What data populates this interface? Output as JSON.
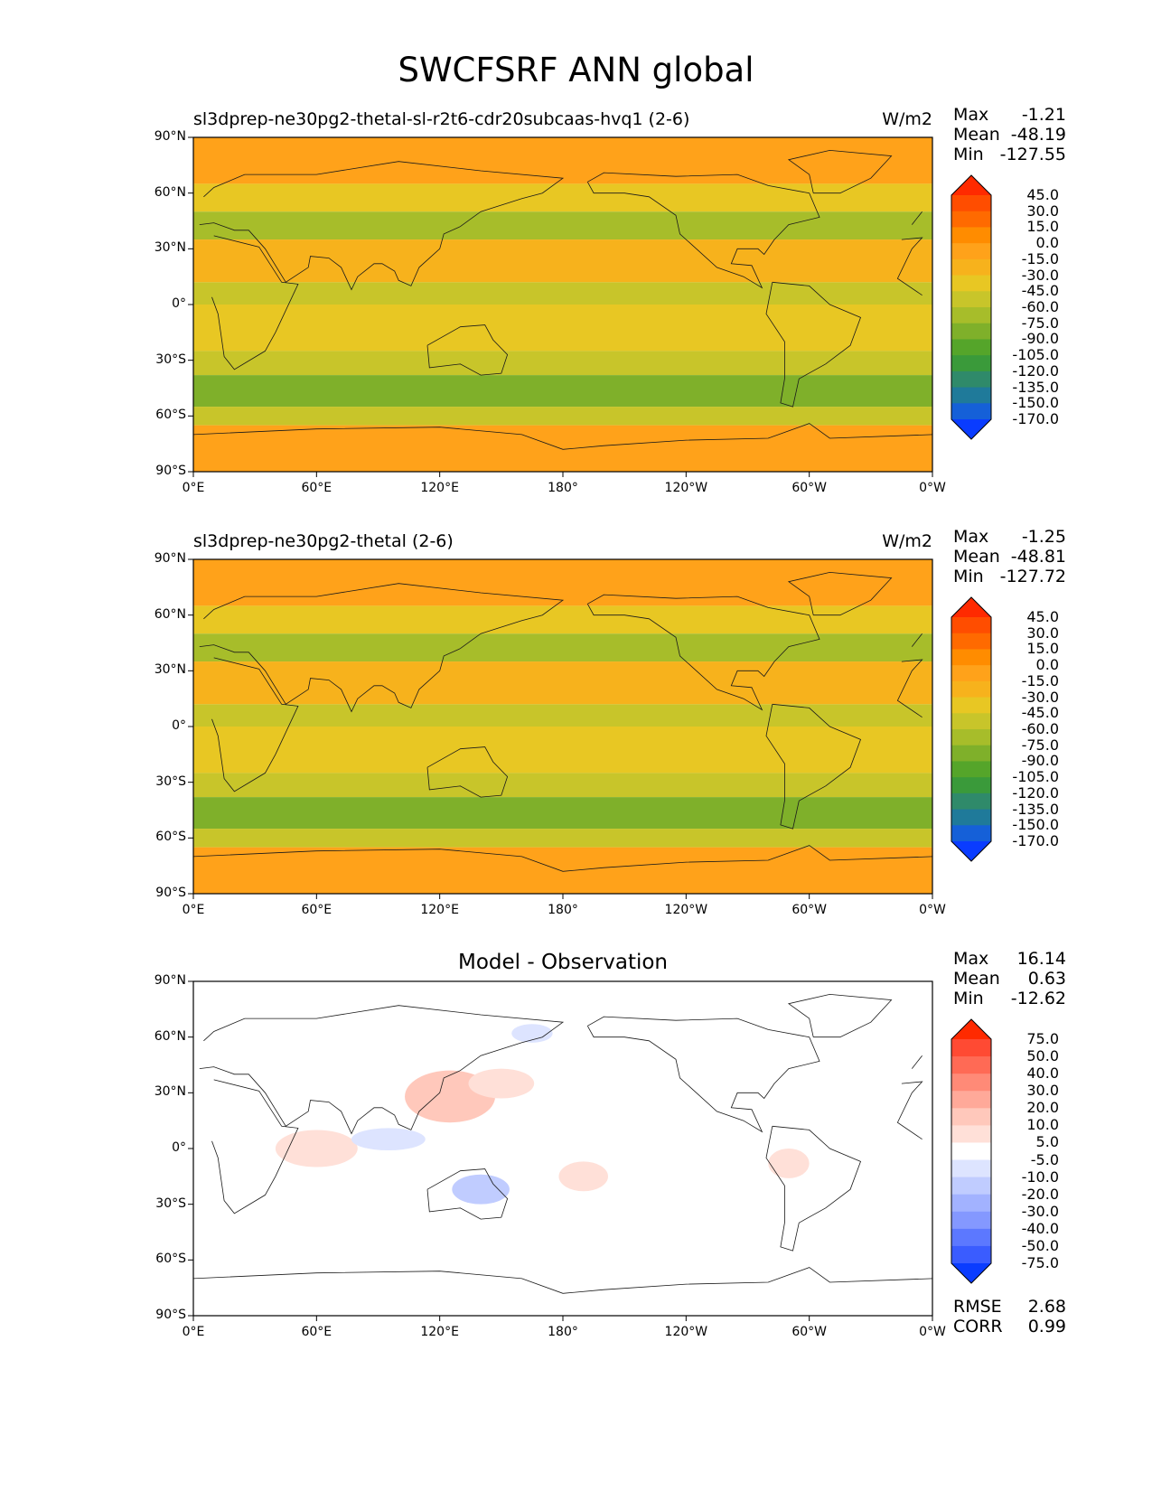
{
  "figure": {
    "title": "SWCFSRF ANN global"
  },
  "axes": {
    "y_ticks": [
      "90°N",
      "60°N",
      "30°N",
      "0°",
      "30°S",
      "60°S",
      "90°S"
    ],
    "x_ticks": [
      "0°E",
      "60°E",
      "120°E",
      "180°",
      "120°W",
      "60°W",
      "0°W"
    ]
  },
  "panels": [
    {
      "label": "sl3dprep-ne30pg2-thetal-sl-r2t6-cdr20subcaas-hvq1 (2-6)",
      "unit": "W/m2",
      "stats": [
        {
          "label": "Max",
          "value": "-1.21"
        },
        {
          "label": "Mean",
          "value": "-48.19"
        },
        {
          "label": "Min",
          "value": "-127.55"
        }
      ]
    },
    {
      "label": "sl3dprep-ne30pg2-thetal (2-6)",
      "unit": "W/m2",
      "stats": [
        {
          "label": "Max",
          "value": "-1.25"
        },
        {
          "label": "Mean",
          "value": "-48.81"
        },
        {
          "label": "Min",
          "value": "-127.72"
        }
      ]
    },
    {
      "center_title": "Model - Observation",
      "stats": [
        {
          "label": "Max",
          "value": "16.14"
        },
        {
          "label": "Mean",
          "value": "0.63"
        },
        {
          "label": "Min",
          "value": "-12.62"
        }
      ],
      "extra_stats": [
        {
          "label": "RMSE",
          "value": "2.68"
        },
        {
          "label": "CORR",
          "value": "0.99"
        }
      ]
    }
  ],
  "colorbars": {
    "field": {
      "levels": [
        "45.0",
        "30.0",
        "15.0",
        "0.0",
        "-15.0",
        "-30.0",
        "-45.0",
        "-60.0",
        "-75.0",
        "-90.0",
        "-105.0",
        "-120.0",
        "-135.0",
        "-150.0",
        "-170.0"
      ],
      "colors": [
        "#ff2a00",
        "#ff4d00",
        "#ff6a00",
        "#ff8c00",
        "#ffa21a",
        "#f7b21c",
        "#e8c723",
        "#c8c52a",
        "#a7bd2a",
        "#7fb02a",
        "#55a52a",
        "#3a9a3a",
        "#2f8a6a",
        "#1f7a9a",
        "#1560d8",
        "#0a3cff"
      ]
    },
    "diff": {
      "levels": [
        "75.0",
        "50.0",
        "40.0",
        "30.0",
        "20.0",
        "10.0",
        "5.0",
        "-5.0",
        "-10.0",
        "-20.0",
        "-30.0",
        "-40.0",
        "-50.0",
        "-75.0"
      ],
      "colors": [
        "#ff2a00",
        "#ff4a33",
        "#ff6a55",
        "#ff8a77",
        "#ffa999",
        "#ffc8bb",
        "#ffe0d8",
        "#ffffff",
        "#dde4ff",
        "#c0ccff",
        "#a2b2ff",
        "#8498ff",
        "#5c78ff",
        "#3a5cff",
        "#0a3cff"
      ]
    }
  }
}
